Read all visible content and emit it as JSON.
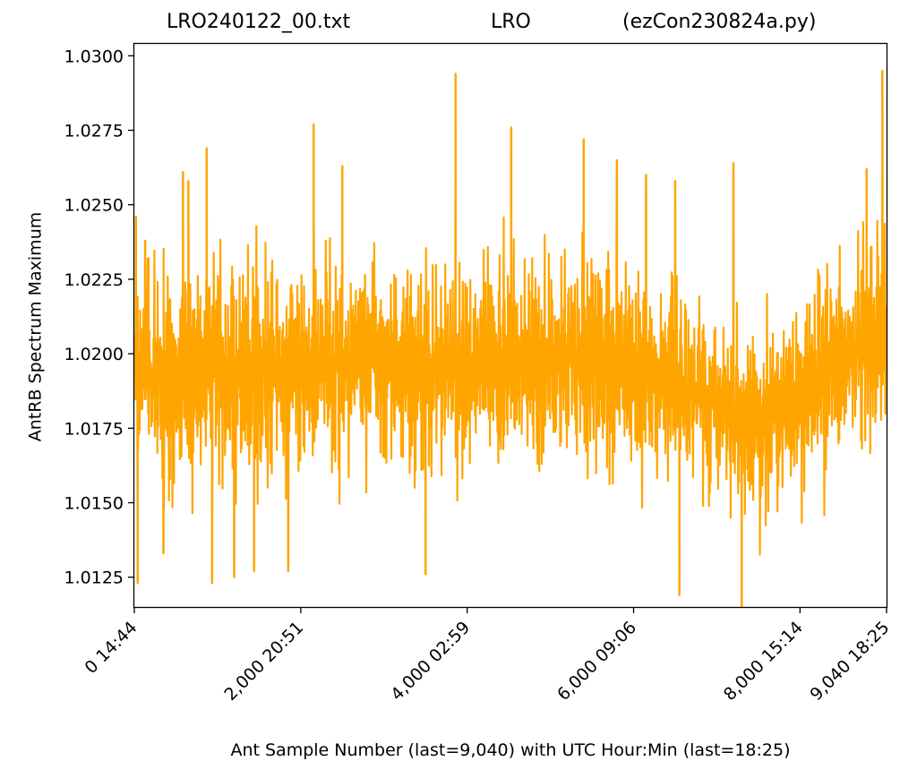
{
  "chart_data": {
    "type": "line",
    "title": {
      "left": "LRO240122_00.txt",
      "middle": "LRO",
      "right": "(ezCon230824a.py)"
    },
    "xlabel": "Ant Sample Number (last=9,040) with UTC Hour:Min (last=18:25)",
    "ylabel": "AntRB Spectrum Maximum",
    "xlim": [
      0,
      9040
    ],
    "ylim": [
      1.0115,
      1.0304
    ],
    "grid": false,
    "line_color": "#ffa500",
    "yticks": [
      {
        "value": 1.0125,
        "label": "1.0125"
      },
      {
        "value": 1.015,
        "label": "1.0150"
      },
      {
        "value": 1.0175,
        "label": "1.0175"
      },
      {
        "value": 1.02,
        "label": "1.0200"
      },
      {
        "value": 1.0225,
        "label": "1.0225"
      },
      {
        "value": 1.025,
        "label": "1.0250"
      },
      {
        "value": 1.0275,
        "label": "1.0275"
      },
      {
        "value": 1.03,
        "label": "1.0300"
      }
    ],
    "xticks": [
      {
        "value": 0,
        "label": "0  14:44"
      },
      {
        "value": 2000,
        "label": "2,000  20:51"
      },
      {
        "value": 4000,
        "label": "4,000  02:59"
      },
      {
        "value": 6000,
        "label": "6,000  09:06"
      },
      {
        "value": 8000,
        "label": "8,000  15:14"
      },
      {
        "value": 9040,
        "label": "9,040  18:25"
      }
    ],
    "series": [
      {
        "envelope": [
          {
            "x": 0,
            "low": 1.0152,
            "high": 1.024
          },
          {
            "x": 500,
            "low": 1.014,
            "high": 1.0242
          },
          {
            "x": 1000,
            "low": 1.0138,
            "high": 1.025
          },
          {
            "x": 1500,
            "low": 1.014,
            "high": 1.0248
          },
          {
            "x": 2000,
            "low": 1.0143,
            "high": 1.0245
          },
          {
            "x": 2500,
            "low": 1.0145,
            "high": 1.0248
          },
          {
            "x": 3000,
            "low": 1.0147,
            "high": 1.0245
          },
          {
            "x": 3500,
            "low": 1.0145,
            "high": 1.0245
          },
          {
            "x": 4000,
            "low": 1.0145,
            "high": 1.0247
          },
          {
            "x": 4500,
            "low": 1.0145,
            "high": 1.0248
          },
          {
            "x": 5000,
            "low": 1.0148,
            "high": 1.025
          },
          {
            "x": 5500,
            "low": 1.0148,
            "high": 1.025
          },
          {
            "x": 6000,
            "low": 1.0145,
            "high": 1.0247
          },
          {
            "x": 6500,
            "low": 1.014,
            "high": 1.024
          },
          {
            "x": 7000,
            "low": 1.0135,
            "high": 1.023
          },
          {
            "x": 7500,
            "low": 1.013,
            "high": 1.022
          },
          {
            "x": 8000,
            "low": 1.0138,
            "high": 1.0232
          },
          {
            "x": 8500,
            "low": 1.0148,
            "high": 1.0248
          },
          {
            "x": 9040,
            "low": 1.0162,
            "high": 1.0258
          }
        ],
        "spikes": [
          {
            "x": 20,
            "y": 1.0246
          },
          {
            "x": 40,
            "y": 1.0123
          },
          {
            "x": 130,
            "y": 1.0238
          },
          {
            "x": 350,
            "y": 1.0133
          },
          {
            "x": 585,
            "y": 1.0261
          },
          {
            "x": 650,
            "y": 1.0258
          },
          {
            "x": 870,
            "y": 1.0269
          },
          {
            "x": 935,
            "y": 1.0123
          },
          {
            "x": 1200,
            "y": 1.0125
          },
          {
            "x": 1440,
            "y": 1.0127
          },
          {
            "x": 1850,
            "y": 1.0127
          },
          {
            "x": 2155,
            "y": 1.0277
          },
          {
            "x": 2500,
            "y": 1.0263
          },
          {
            "x": 3500,
            "y": 1.0126
          },
          {
            "x": 3860,
            "y": 1.0294
          },
          {
            "x": 4530,
            "y": 1.0276
          },
          {
            "x": 5400,
            "y": 1.0272
          },
          {
            "x": 5800,
            "y": 1.0265
          },
          {
            "x": 6150,
            "y": 1.026
          },
          {
            "x": 6500,
            "y": 1.0258
          },
          {
            "x": 6550,
            "y": 1.0119
          },
          {
            "x": 7200,
            "y": 1.0264
          },
          {
            "x": 7300,
            "y": 1.0115
          },
          {
            "x": 8800,
            "y": 1.0262
          },
          {
            "x": 8990,
            "y": 1.0295
          }
        ]
      }
    ]
  }
}
